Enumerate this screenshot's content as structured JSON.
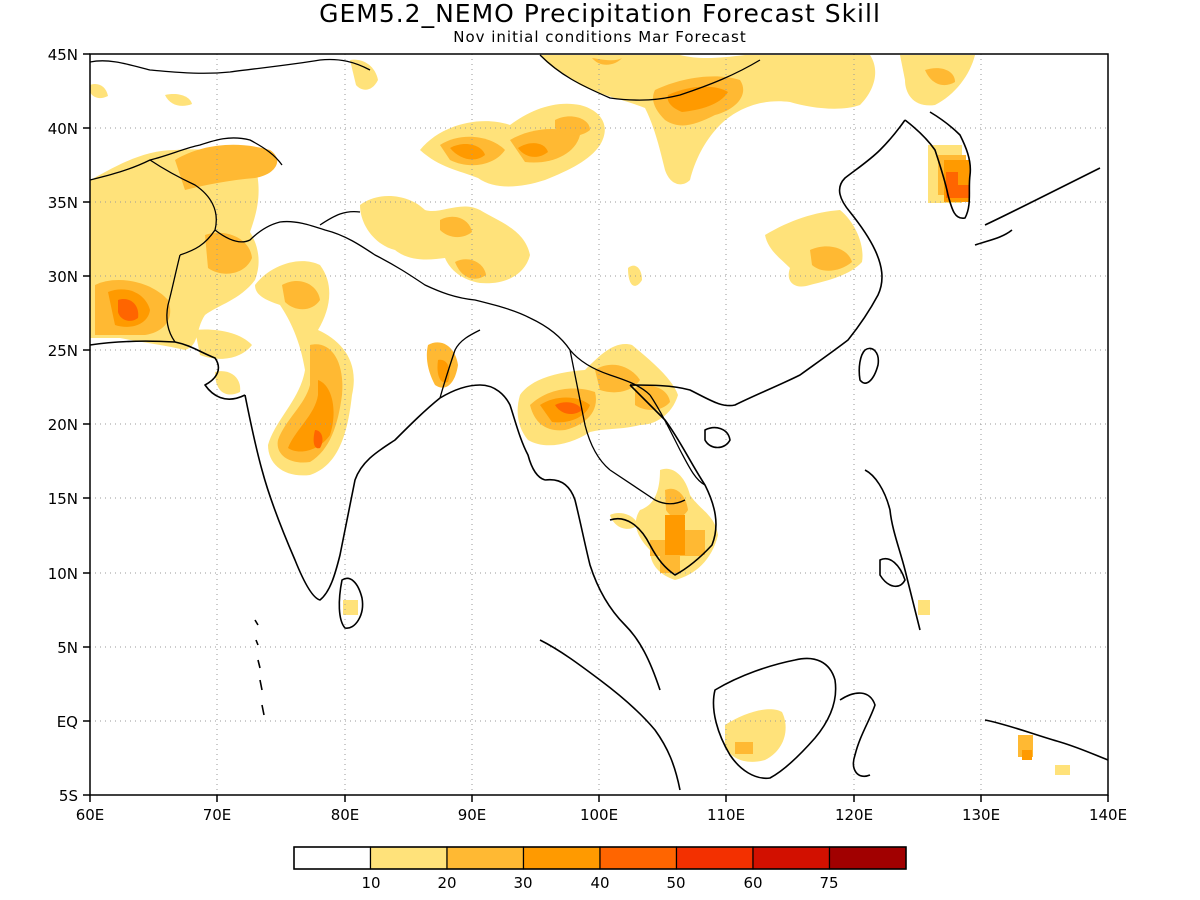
{
  "header": {
    "title": "GEM5.2_NEMO Precipitation Forecast Skill",
    "subtitle": "Nov initial conditions   Mar Forecast"
  },
  "map": {
    "lon_range": [
      60,
      140
    ],
    "lat_range": [
      -5,
      45
    ],
    "x_ticks": [
      "60E",
      "70E",
      "80E",
      "90E",
      "100E",
      "110E",
      "120E",
      "130E",
      "140E"
    ],
    "y_ticks": [
      "45N",
      "40N",
      "35N",
      "30N",
      "25N",
      "20N",
      "15N",
      "10N",
      "5N",
      "EQ",
      "5S"
    ],
    "gridlines": "dotted"
  },
  "legend": {
    "colors": [
      "#ffffff",
      "#ffe27a",
      "#ffb933",
      "#ff9a00",
      "#ff6500",
      "#f33000",
      "#d21000",
      "#a10000"
    ],
    "labels": [
      "10",
      "20",
      "30",
      "40",
      "50",
      "60",
      "75"
    ]
  },
  "skill_regions": [
    {
      "lon": 93,
      "lat": 38,
      "level": 3
    },
    {
      "lon": 98,
      "lat": 21,
      "level": 4
    },
    {
      "lon": 79,
      "lat": 20,
      "level": 4
    },
    {
      "lon": 62,
      "lat": 27.5,
      "level": 4
    },
    {
      "lon": 108,
      "lat": 42,
      "level": 3
    },
    {
      "lon": 105,
      "lat": 13,
      "level": 3
    },
    {
      "lon": 127.5,
      "lat": 36,
      "level": 4
    },
    {
      "lon": 71,
      "lat": 31,
      "level": 2
    },
    {
      "lon": 112,
      "lat": 1,
      "level": 1
    }
  ]
}
